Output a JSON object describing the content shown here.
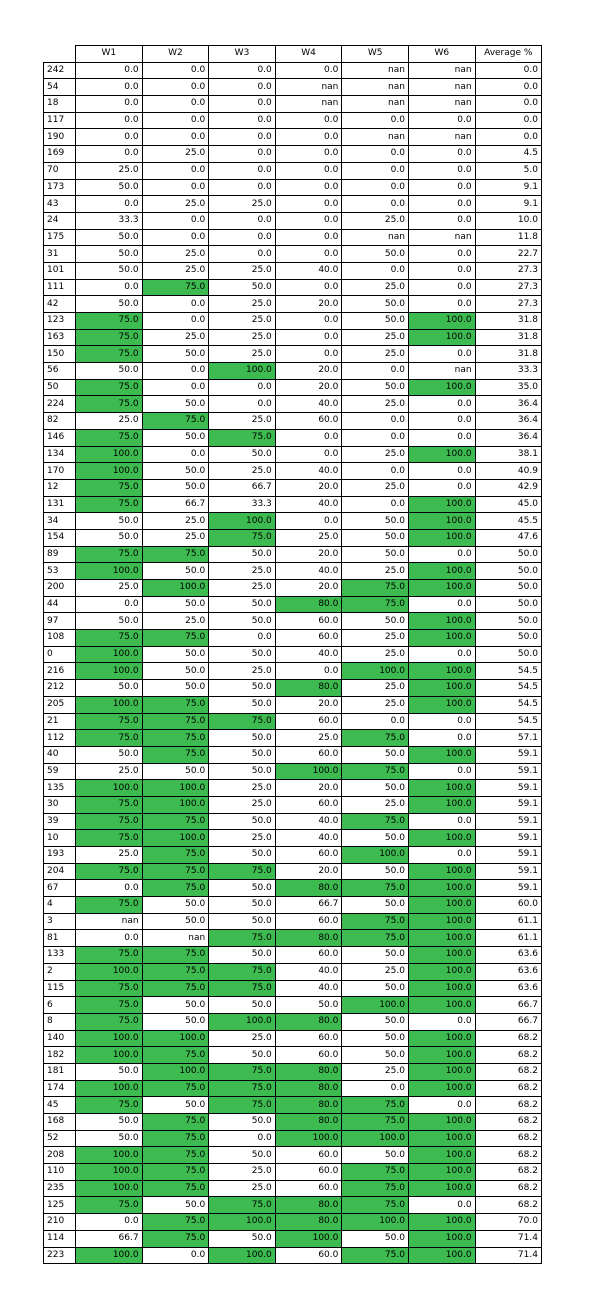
{
  "table": {
    "columns": [
      "W1",
      "W2",
      "W3",
      "W4",
      "W5",
      "W6",
      "Average %"
    ],
    "highlight_color": "#3dba50",
    "highlight_rule": "week values >= 75",
    "rows": [
      {
        "id": "242",
        "values": [
          "0.0",
          "0.0",
          "0.0",
          "0.0",
          "nan",
          "nan",
          "0.0"
        ]
      },
      {
        "id": "54",
        "values": [
          "0.0",
          "0.0",
          "0.0",
          "nan",
          "nan",
          "nan",
          "0.0"
        ]
      },
      {
        "id": "18",
        "values": [
          "0.0",
          "0.0",
          "0.0",
          "nan",
          "nan",
          "nan",
          "0.0"
        ]
      },
      {
        "id": "117",
        "values": [
          "0.0",
          "0.0",
          "0.0",
          "0.0",
          "0.0",
          "0.0",
          "0.0"
        ]
      },
      {
        "id": "190",
        "values": [
          "0.0",
          "0.0",
          "0.0",
          "0.0",
          "nan",
          "nan",
          "0.0"
        ]
      },
      {
        "id": "169",
        "values": [
          "0.0",
          "25.0",
          "0.0",
          "0.0",
          "0.0",
          "0.0",
          "4.5"
        ]
      },
      {
        "id": "70",
        "values": [
          "25.0",
          "0.0",
          "0.0",
          "0.0",
          "0.0",
          "0.0",
          "5.0"
        ]
      },
      {
        "id": "173",
        "values": [
          "50.0",
          "0.0",
          "0.0",
          "0.0",
          "0.0",
          "0.0",
          "9.1"
        ]
      },
      {
        "id": "43",
        "values": [
          "0.0",
          "25.0",
          "25.0",
          "0.0",
          "0.0",
          "0.0",
          "9.1"
        ]
      },
      {
        "id": "24",
        "values": [
          "33.3",
          "0.0",
          "0.0",
          "0.0",
          "25.0",
          "0.0",
          "10.0"
        ]
      },
      {
        "id": "175",
        "values": [
          "50.0",
          "0.0",
          "0.0",
          "0.0",
          "nan",
          "nan",
          "11.8"
        ]
      },
      {
        "id": "31",
        "values": [
          "50.0",
          "25.0",
          "0.0",
          "0.0",
          "50.0",
          "0.0",
          "22.7"
        ]
      },
      {
        "id": "101",
        "values": [
          "50.0",
          "25.0",
          "25.0",
          "40.0",
          "0.0",
          "0.0",
          "27.3"
        ]
      },
      {
        "id": "111",
        "values": [
          "0.0",
          "75.0",
          "50.0",
          "0.0",
          "25.0",
          "0.0",
          "27.3"
        ]
      },
      {
        "id": "42",
        "values": [
          "50.0",
          "0.0",
          "25.0",
          "20.0",
          "50.0",
          "0.0",
          "27.3"
        ]
      },
      {
        "id": "123",
        "values": [
          "75.0",
          "0.0",
          "25.0",
          "0.0",
          "50.0",
          "100.0",
          "31.8"
        ]
      },
      {
        "id": "163",
        "values": [
          "75.0",
          "25.0",
          "25.0",
          "0.0",
          "25.0",
          "100.0",
          "31.8"
        ]
      },
      {
        "id": "150",
        "values": [
          "75.0",
          "50.0",
          "25.0",
          "0.0",
          "25.0",
          "0.0",
          "31.8"
        ]
      },
      {
        "id": "56",
        "values": [
          "50.0",
          "0.0",
          "100.0",
          "20.0",
          "0.0",
          "nan",
          "33.3"
        ]
      },
      {
        "id": "50",
        "values": [
          "75.0",
          "0.0",
          "0.0",
          "20.0",
          "50.0",
          "100.0",
          "35.0"
        ]
      },
      {
        "id": "224",
        "values": [
          "75.0",
          "50.0",
          "0.0",
          "40.0",
          "25.0",
          "0.0",
          "36.4"
        ]
      },
      {
        "id": "82",
        "values": [
          "25.0",
          "75.0",
          "25.0",
          "60.0",
          "0.0",
          "0.0",
          "36.4"
        ]
      },
      {
        "id": "146",
        "values": [
          "75.0",
          "50.0",
          "75.0",
          "0.0",
          "0.0",
          "0.0",
          "36.4"
        ]
      },
      {
        "id": "134",
        "values": [
          "100.0",
          "0.0",
          "50.0",
          "0.0",
          "25.0",
          "100.0",
          "38.1"
        ]
      },
      {
        "id": "170",
        "values": [
          "100.0",
          "50.0",
          "25.0",
          "40.0",
          "0.0",
          "0.0",
          "40.9"
        ]
      },
      {
        "id": "12",
        "values": [
          "75.0",
          "50.0",
          "66.7",
          "20.0",
          "25.0",
          "0.0",
          "42.9"
        ]
      },
      {
        "id": "131",
        "values": [
          "75.0",
          "66.7",
          "33.3",
          "40.0",
          "0.0",
          "100.0",
          "45.0"
        ]
      },
      {
        "id": "34",
        "values": [
          "50.0",
          "25.0",
          "100.0",
          "0.0",
          "50.0",
          "100.0",
          "45.5"
        ]
      },
      {
        "id": "154",
        "values": [
          "50.0",
          "25.0",
          "75.0",
          "25.0",
          "50.0",
          "100.0",
          "47.6"
        ]
      },
      {
        "id": "89",
        "values": [
          "75.0",
          "75.0",
          "50.0",
          "20.0",
          "50.0",
          "0.0",
          "50.0"
        ]
      },
      {
        "id": "53",
        "values": [
          "100.0",
          "50.0",
          "25.0",
          "40.0",
          "25.0",
          "100.0",
          "50.0"
        ]
      },
      {
        "id": "200",
        "values": [
          "25.0",
          "100.0",
          "25.0",
          "20.0",
          "75.0",
          "100.0",
          "50.0"
        ]
      },
      {
        "id": "44",
        "values": [
          "0.0",
          "50.0",
          "50.0",
          "80.0",
          "75.0",
          "0.0",
          "50.0"
        ]
      },
      {
        "id": "97",
        "values": [
          "50.0",
          "25.0",
          "50.0",
          "60.0",
          "50.0",
          "100.0",
          "50.0"
        ]
      },
      {
        "id": "108",
        "values": [
          "75.0",
          "75.0",
          "0.0",
          "60.0",
          "25.0",
          "100.0",
          "50.0"
        ]
      },
      {
        "id": "0",
        "values": [
          "100.0",
          "50.0",
          "50.0",
          "40.0",
          "25.0",
          "0.0",
          "50.0"
        ]
      },
      {
        "id": "216",
        "values": [
          "100.0",
          "50.0",
          "25.0",
          "0.0",
          "100.0",
          "100.0",
          "54.5"
        ]
      },
      {
        "id": "212",
        "values": [
          "50.0",
          "50.0",
          "50.0",
          "80.0",
          "25.0",
          "100.0",
          "54.5"
        ]
      },
      {
        "id": "205",
        "values": [
          "100.0",
          "75.0",
          "50.0",
          "20.0",
          "25.0",
          "100.0",
          "54.5"
        ]
      },
      {
        "id": "21",
        "values": [
          "75.0",
          "75.0",
          "75.0",
          "60.0",
          "0.0",
          "0.0",
          "54.5"
        ]
      },
      {
        "id": "112",
        "values": [
          "75.0",
          "75.0",
          "50.0",
          "25.0",
          "75.0",
          "0.0",
          "57.1"
        ]
      },
      {
        "id": "40",
        "values": [
          "50.0",
          "75.0",
          "50.0",
          "60.0",
          "50.0",
          "100.0",
          "59.1"
        ]
      },
      {
        "id": "59",
        "values": [
          "25.0",
          "50.0",
          "50.0",
          "100.0",
          "75.0",
          "0.0",
          "59.1"
        ]
      },
      {
        "id": "135",
        "values": [
          "100.0",
          "100.0",
          "25.0",
          "20.0",
          "50.0",
          "100.0",
          "59.1"
        ]
      },
      {
        "id": "30",
        "values": [
          "75.0",
          "100.0",
          "25.0",
          "60.0",
          "25.0",
          "100.0",
          "59.1"
        ]
      },
      {
        "id": "39",
        "values": [
          "75.0",
          "75.0",
          "50.0",
          "40.0",
          "75.0",
          "0.0",
          "59.1"
        ]
      },
      {
        "id": "10",
        "values": [
          "75.0",
          "100.0",
          "25.0",
          "40.0",
          "50.0",
          "100.0",
          "59.1"
        ]
      },
      {
        "id": "193",
        "values": [
          "25.0",
          "75.0",
          "50.0",
          "60.0",
          "100.0",
          "0.0",
          "59.1"
        ]
      },
      {
        "id": "204",
        "values": [
          "75.0",
          "75.0",
          "75.0",
          "20.0",
          "50.0",
          "100.0",
          "59.1"
        ]
      },
      {
        "id": "67",
        "values": [
          "0.0",
          "75.0",
          "50.0",
          "80.0",
          "75.0",
          "100.0",
          "59.1"
        ]
      },
      {
        "id": "4",
        "values": [
          "75.0",
          "50.0",
          "50.0",
          "66.7",
          "50.0",
          "100.0",
          "60.0"
        ]
      },
      {
        "id": "3",
        "values": [
          "nan",
          "50.0",
          "50.0",
          "60.0",
          "75.0",
          "100.0",
          "61.1"
        ]
      },
      {
        "id": "81",
        "values": [
          "0.0",
          "nan",
          "75.0",
          "80.0",
          "75.0",
          "100.0",
          "61.1"
        ]
      },
      {
        "id": "133",
        "values": [
          "75.0",
          "75.0",
          "50.0",
          "60.0",
          "50.0",
          "100.0",
          "63.6"
        ]
      },
      {
        "id": "2",
        "values": [
          "100.0",
          "75.0",
          "75.0",
          "40.0",
          "25.0",
          "100.0",
          "63.6"
        ]
      },
      {
        "id": "115",
        "values": [
          "75.0",
          "75.0",
          "75.0",
          "40.0",
          "50.0",
          "100.0",
          "63.6"
        ]
      },
      {
        "id": "6",
        "values": [
          "75.0",
          "50.0",
          "50.0",
          "50.0",
          "100.0",
          "100.0",
          "66.7"
        ]
      },
      {
        "id": "8",
        "values": [
          "75.0",
          "50.0",
          "100.0",
          "80.0",
          "50.0",
          "0.0",
          "66.7"
        ]
      },
      {
        "id": "140",
        "values": [
          "100.0",
          "100.0",
          "25.0",
          "60.0",
          "50.0",
          "100.0",
          "68.2"
        ]
      },
      {
        "id": "182",
        "values": [
          "100.0",
          "75.0",
          "50.0",
          "60.0",
          "50.0",
          "100.0",
          "68.2"
        ]
      },
      {
        "id": "181",
        "values": [
          "50.0",
          "100.0",
          "75.0",
          "80.0",
          "25.0",
          "100.0",
          "68.2"
        ]
      },
      {
        "id": "174",
        "values": [
          "100.0",
          "75.0",
          "75.0",
          "80.0",
          "0.0",
          "100.0",
          "68.2"
        ]
      },
      {
        "id": "45",
        "values": [
          "75.0",
          "50.0",
          "75.0",
          "80.0",
          "75.0",
          "0.0",
          "68.2"
        ]
      },
      {
        "id": "168",
        "values": [
          "50.0",
          "75.0",
          "50.0",
          "80.0",
          "75.0",
          "100.0",
          "68.2"
        ]
      },
      {
        "id": "52",
        "values": [
          "50.0",
          "75.0",
          "0.0",
          "100.0",
          "100.0",
          "100.0",
          "68.2"
        ]
      },
      {
        "id": "208",
        "values": [
          "100.0",
          "75.0",
          "50.0",
          "60.0",
          "50.0",
          "100.0",
          "68.2"
        ]
      },
      {
        "id": "110",
        "values": [
          "100.0",
          "75.0",
          "25.0",
          "60.0",
          "75.0",
          "100.0",
          "68.2"
        ]
      },
      {
        "id": "235",
        "values": [
          "100.0",
          "75.0",
          "25.0",
          "60.0",
          "75.0",
          "100.0",
          "68.2"
        ]
      },
      {
        "id": "125",
        "values": [
          "75.0",
          "50.0",
          "75.0",
          "80.0",
          "75.0",
          "0.0",
          "68.2"
        ]
      },
      {
        "id": "210",
        "values": [
          "0.0",
          "75.0",
          "100.0",
          "80.0",
          "100.0",
          "100.0",
          "70.0"
        ]
      },
      {
        "id": "114",
        "values": [
          "66.7",
          "75.0",
          "50.0",
          "100.0",
          "50.0",
          "100.0",
          "71.4"
        ]
      },
      {
        "id": "223",
        "values": [
          "100.0",
          "0.0",
          "100.0",
          "60.0",
          "75.0",
          "100.0",
          "71.4"
        ]
      }
    ]
  }
}
